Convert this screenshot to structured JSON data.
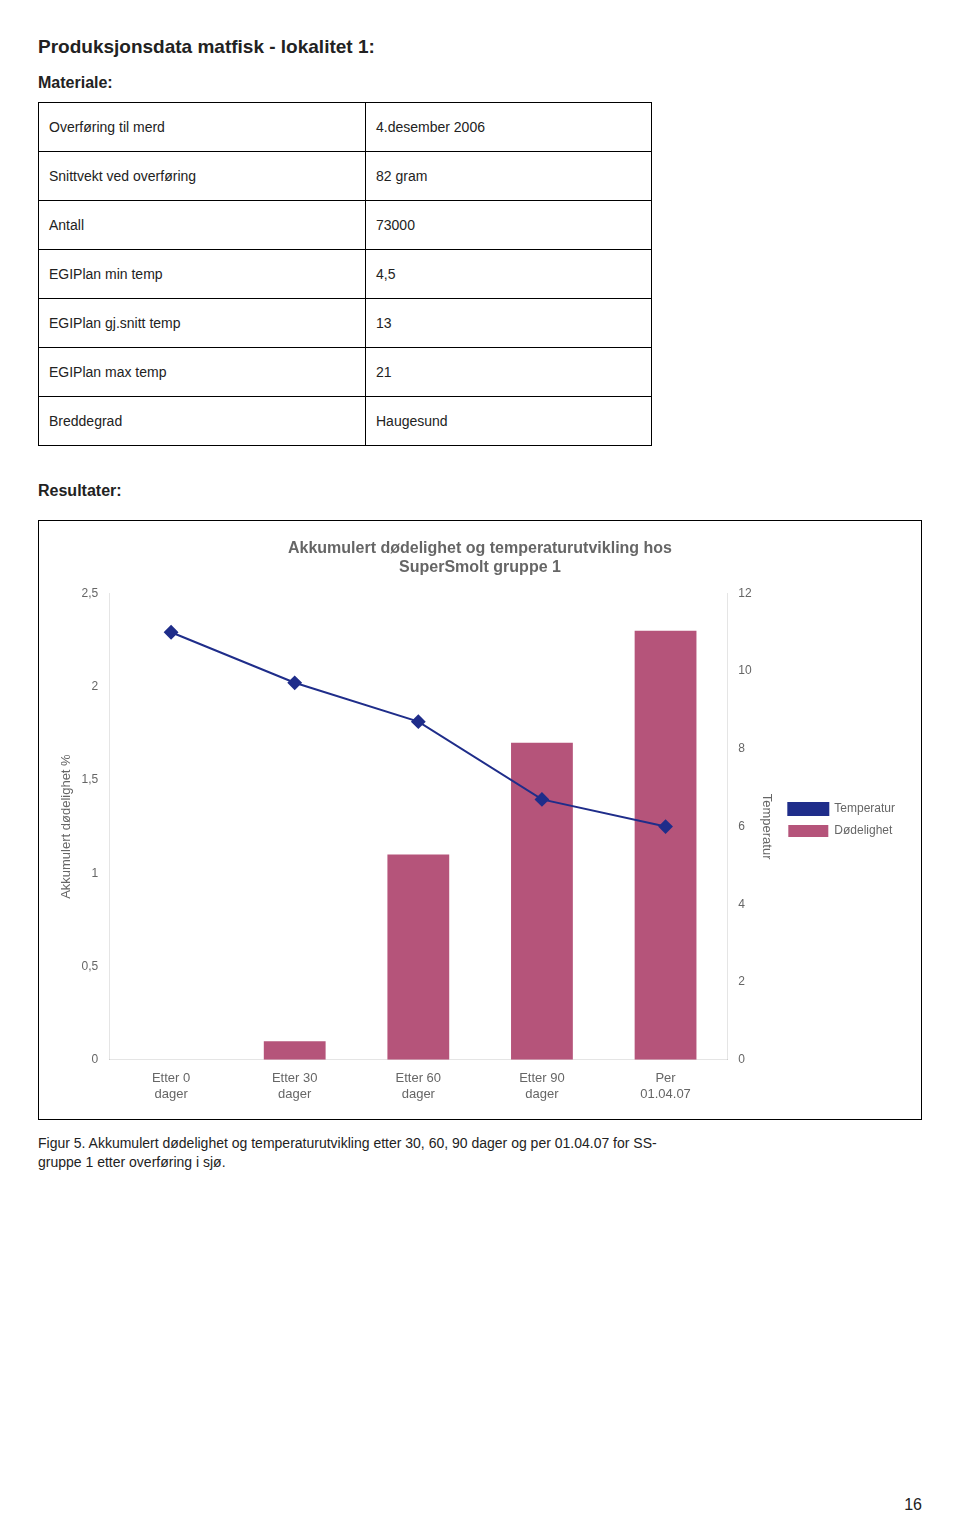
{
  "page_title": "Produksjonsdata matfisk - lokalitet 1:",
  "section_title": "Materiale:",
  "table": [
    [
      "Overføring til merd",
      "4.desember 2006"
    ],
    [
      "Snittvekt ved overføring",
      "82 gram"
    ],
    [
      "Antall",
      "73000"
    ],
    [
      "EGIPlan min temp",
      "4,5"
    ],
    [
      "EGIPlan gj.snitt temp",
      "13"
    ],
    [
      "EGIPlan max temp",
      "21"
    ],
    [
      "Breddegrad",
      "Haugesund"
    ]
  ],
  "resultater_label": "Resultater:",
  "caption": "Figur 5. Akkumulert dødelighet og temperaturutvikling etter 30, 60, 90 dager og per 01.04.07 for SS-\ngruppe 1 etter overføring i sjø.",
  "page_number": "16",
  "chart_data": {
    "type": "bar",
    "title": "Akkumulert dødelighet og temperaturutvikling hos\nSuperSmolt gruppe 1",
    "categories": [
      "Etter 0\ndager",
      "Etter 30\ndager",
      "Etter 60\ndager",
      "Etter 90\ndager",
      "Per\n01.04.07"
    ],
    "series": [
      {
        "name": "Dødelighet",
        "type": "bar",
        "color": "#b5547a",
        "values": [
          0.0,
          0.1,
          1.1,
          1.7,
          2.3
        ]
      },
      {
        "name": "Temperatur",
        "type": "line",
        "color": "#1f2d8a",
        "marker": "diamond",
        "axis": "y2",
        "values": [
          11.0,
          9.7,
          8.7,
          6.7,
          6.0
        ]
      }
    ],
    "ylabel": "Akkumulert dødelighet %",
    "y2label": "Temperatur",
    "ylim": [
      0,
      2.5
    ],
    "yticks": [
      0,
      {
        "value": 0.5,
        "label": "0,5"
      },
      1,
      {
        "value": 1.5,
        "label": "1,5"
      },
      2,
      {
        "value": 2.5,
        "label": "2,5"
      }
    ],
    "y2lim": [
      0,
      12
    ],
    "y2ticks": [
      0,
      2,
      4,
      6,
      8,
      10,
      12
    ],
    "grid": false,
    "legend": "right"
  }
}
